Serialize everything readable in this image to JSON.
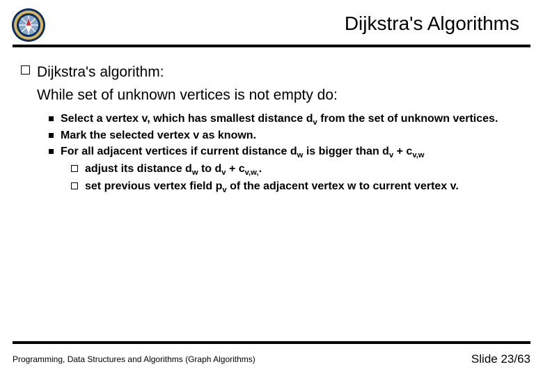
{
  "header": {
    "title": "Dijkstra's Algorithms"
  },
  "content": {
    "l1_text": "Dijkstra's algorithm:",
    "l1_cont": "While set of unknown vertices is not empty do:",
    "l2": [
      {
        "html": "Select a vertex v, which has smallest distance d<sub>v</sub> from the set of unknown vertices."
      },
      {
        "html": "Mark the selected vertex v as known."
      },
      {
        "html": "For all adjacent vertices if current distance d<sub>w</sub> is bigger than d<sub>v</sub> + c<sub>v,w</sub>"
      }
    ],
    "l3": [
      {
        "html": "adjust its distance d<sub>w</sub> to d<sub>v</sub> + c<sub>v,w,</sub>."
      },
      {
        "html": "set previous vertex field p<sub>v</sub> of the adjacent vertex w to current vertex v."
      }
    ]
  },
  "footer": {
    "left": "Programming, Data Structures and Algorithms  (Graph Algorithms)",
    "right": "Slide 23/63"
  },
  "colors": {
    "rule": "#000000",
    "logo_outer": "#0b2f63",
    "logo_ring": "#d9b75f",
    "logo_inner": "#8aa9c9"
  }
}
